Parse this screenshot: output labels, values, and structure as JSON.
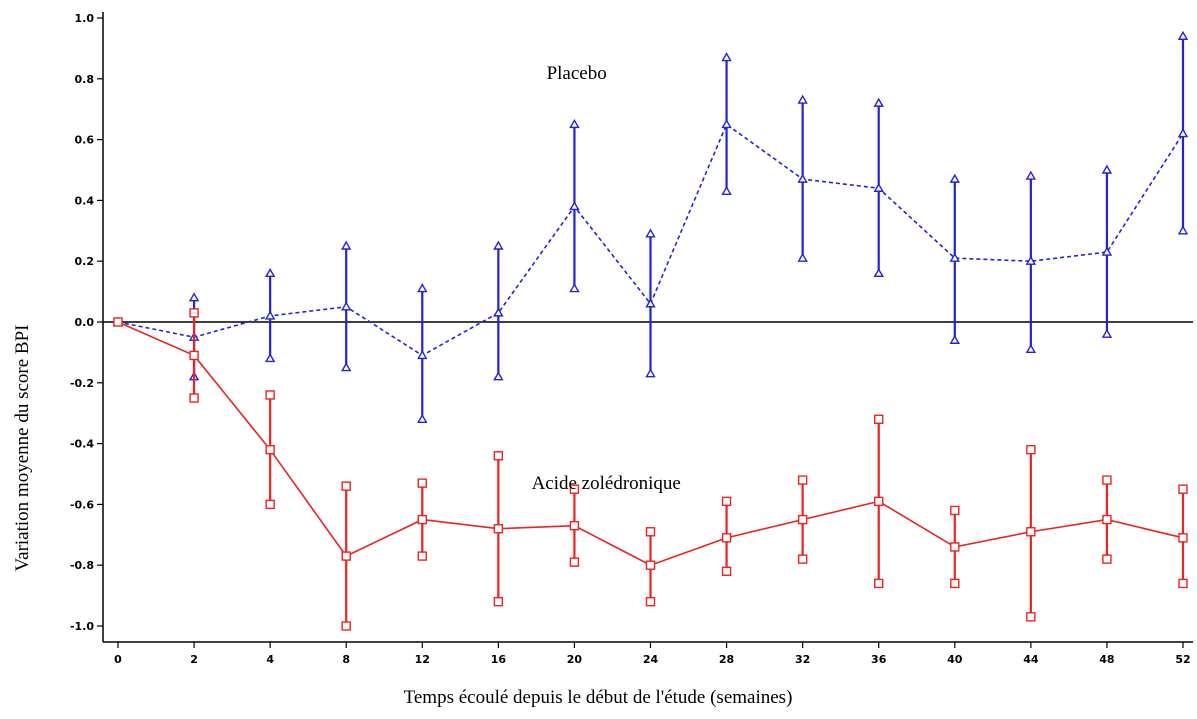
{
  "chart_data": {
    "type": "line",
    "xlabel": "Temps écoulé depuis le début de l'étude (semaines)",
    "ylabel": "Variation moyenne du score BPI",
    "ylim": [
      -1.0,
      1.0
    ],
    "x": [
      0,
      2,
      4,
      8,
      12,
      16,
      20,
      24,
      28,
      32,
      36,
      40,
      44,
      48,
      52
    ],
    "x_tick_labels": [
      "0",
      "2",
      "4",
      "8",
      "12",
      "16",
      "20",
      "24",
      "28",
      "32",
      "36",
      "40",
      "44",
      "48",
      "52"
    ],
    "y_ticks": [
      1.0,
      0.8,
      0.6,
      0.4,
      0.2,
      0.0,
      -0.2,
      -0.4,
      -0.6,
      -0.8,
      -1.0
    ],
    "y_tick_labels": [
      "1.0",
      "0.8",
      "0.6",
      "0.4",
      "0.2",
      "0.0",
      "-0.2",
      "-0.4",
      "-0.6",
      "-0.8",
      "-1.0"
    ],
    "reference_line_y": 0.0,
    "grid": false,
    "series": [
      {
        "label": "Placebo",
        "color": "#2222dd",
        "line_style": "dashed",
        "marker": "triangle",
        "values": [
          0.0,
          -0.05,
          0.02,
          0.05,
          -0.11,
          0.03,
          0.38,
          0.06,
          0.65,
          0.47,
          0.44,
          0.21,
          0.2,
          0.23,
          0.62
        ],
        "lower": [
          0.0,
          -0.18,
          -0.12,
          -0.15,
          -0.32,
          -0.18,
          0.11,
          -0.17,
          0.43,
          0.21,
          0.16,
          -0.06,
          -0.09,
          -0.04,
          0.3
        ],
        "upper": [
          0.0,
          0.08,
          0.16,
          0.25,
          0.11,
          0.25,
          0.65,
          0.29,
          0.87,
          0.73,
          0.72,
          0.47,
          0.48,
          0.5,
          0.94
        ]
      },
      {
        "label": "Acide zolédronique",
        "color": "#ee2222",
        "line_style": "solid",
        "marker": "square",
        "values": [
          0.0,
          -0.11,
          -0.42,
          -0.77,
          -0.65,
          -0.68,
          -0.67,
          -0.8,
          -0.71,
          -0.65,
          -0.59,
          -0.74,
          -0.69,
          -0.65,
          -0.71
        ],
        "lower": [
          0.0,
          -0.25,
          -0.6,
          -1.0,
          -0.77,
          -0.92,
          -0.79,
          -0.92,
          -0.82,
          -0.78,
          -0.86,
          -0.86,
          -0.97,
          -0.78,
          -0.86
        ],
        "upper": [
          0.0,
          0.03,
          -0.24,
          -0.54,
          -0.53,
          -0.44,
          -0.55,
          -0.69,
          -0.59,
          -0.52,
          -0.32,
          -0.62,
          -0.42,
          -0.52,
          -0.55
        ]
      }
    ],
    "annotations": [
      {
        "text": "Placebo",
        "x": 28,
        "y": 0.8
      },
      {
        "text": "Acide zolédronique",
        "x": 28,
        "y": -0.55
      }
    ]
  }
}
